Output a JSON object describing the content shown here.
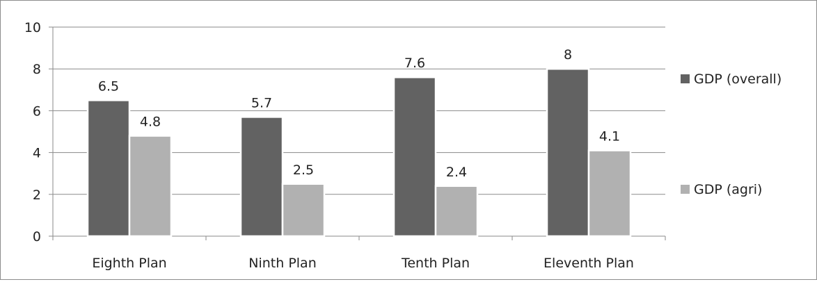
{
  "chart_data": {
    "type": "bar",
    "categories": [
      "Eighth Plan",
      "Ninth Plan",
      "Tenth Plan",
      "Eleventh Plan"
    ],
    "series": [
      {
        "name": "GDP (overall)",
        "values": [
          6.5,
          5.7,
          7.6,
          8
        ],
        "labels": [
          "6.5",
          "5.7",
          "7.6",
          "8"
        ],
        "color": "#626262"
      },
      {
        "name": "GDP (agri)",
        "values": [
          4.8,
          2.5,
          2.4,
          4.1
        ],
        "labels": [
          "4.8",
          "2.5",
          "2.4",
          "4.1"
        ],
        "color": "#b1b1b1"
      }
    ],
    "yticks": [
      0,
      2,
      4,
      6,
      8,
      10
    ],
    "ylim": [
      0,
      10
    ],
    "grid": true,
    "legend_position": "right",
    "title": "",
    "xlabel": "",
    "ylabel": ""
  }
}
